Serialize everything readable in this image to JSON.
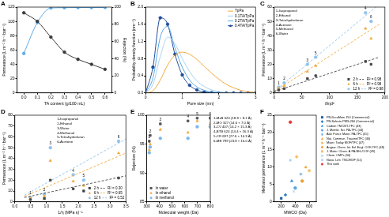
{
  "chart_data": [
    {
      "panel": "A",
      "type": "line",
      "x_label": "TA content (g/100 mL)",
      "y_label": "Permeance (L m⁻² h⁻¹ bar⁻¹)",
      "y2_label": "Rejection (%)",
      "x": [
        0,
        0.1,
        0.2,
        0.3,
        0.4,
        0.5,
        0.6
      ],
      "xlim": [
        -0.05,
        0.65
      ],
      "xticks": [
        {
          "value": 0,
          "label": "0.0"
        },
        0.1,
        0.2,
        0.3,
        0.4,
        0.5,
        0.6
      ],
      "ylim": [
        0,
        120
      ],
      "yticks": [
        0,
        20,
        40,
        60,
        80,
        100,
        120
      ],
      "y2lim": [
        0,
        100
      ],
      "y2ticks": [
        0,
        20,
        40,
        60,
        80,
        100
      ],
      "grid": false,
      "series": [
        {
          "color": "#3a3a3a",
          "marker": "circle",
          "line_style": "solid",
          "values": [
            112,
            100,
            78,
            57,
            47,
            40,
            33
          ]
        },
        {
          "color": "#5aa9e6",
          "marker": "circle",
          "line_style": "solid",
          "axis": "y2",
          "values": [
            46,
            82,
            99,
            99.3,
            99.5,
            99.5,
            99.6
          ]
        }
      ]
    },
    {
      "panel": "B",
      "type": "line",
      "x_label": "Pore size (nm)",
      "y_label": "Probability density function (nm⁻¹)",
      "x": [
        0,
        0.2,
        0.4,
        0.6,
        0.8,
        1,
        1.2,
        1.4,
        1.6,
        1.8,
        2,
        2.2,
        2.4,
        2.6,
        2.8,
        3
      ],
      "xlim": [
        0,
        3
      ],
      "xticks": [
        0,
        1,
        2,
        3
      ],
      "ylim": [
        0,
        2
      ],
      "yticks": [
        {
          "value": 0,
          "label": "0.0"
        },
        0.4,
        0.8,
        1.2,
        1.6,
        {
          "value": 2,
          "label": "2.0"
        }
      ],
      "grid": false,
      "legend": "upper right",
      "series": [
        {
          "name": "TpPa",
          "color": "#f2a93b",
          "marker": "none",
          "line_style": "solid",
          "values": [
            0,
            0.05,
            0.3,
            0.65,
            0.88,
            0.95,
            0.9,
            0.78,
            0.62,
            0.46,
            0.32,
            0.2,
            0.12,
            0.06,
            0.03,
            0.01
          ]
        },
        {
          "name": "0.1TA/TpPa",
          "color": "#a9d0f2",
          "marker": "none",
          "line_style": "solid",
          "values": [
            0,
            0.2,
            0.85,
            1.3,
            1.15,
            0.8,
            0.5,
            0.28,
            0.15,
            0.07,
            0.03,
            0.01,
            0,
            0,
            0,
            0
          ]
        },
        {
          "name": "0.2TA/TpPa",
          "color": "#5aa9e6",
          "marker": "none",
          "line_style": "solid",
          "values": [
            0,
            0.35,
            1.3,
            1.55,
            1.05,
            0.6,
            0.3,
            0.14,
            0.06,
            0.02,
            0.01,
            0,
            0,
            0,
            0,
            0
          ]
        },
        {
          "name": "0.4TA/TpPa",
          "color": "#1f4e9a",
          "marker": "circle",
          "line_style": "solid",
          "values": [
            0,
            0.6,
            1.75,
            1.6,
            0.9,
            0.42,
            0.18,
            0.07,
            0.02,
            0.01,
            0,
            0,
            0,
            0,
            0,
            0
          ]
        }
      ]
    },
    {
      "panel": "C",
      "type": "scatter",
      "x_label": "δ/ηd²",
      "y_label": "Permeance (L m⁻² h⁻¹ bar⁻¹)",
      "annotations": [
        "1-Isopropanol",
        "2-Ethanol",
        "3-Tetrahydrofuran",
        "4-Acetone",
        "5-Methanol",
        "6-Water"
      ],
      "x": [
        8,
        18,
        60,
        165,
        75,
        175
      ],
      "xlim": [
        0,
        200
      ],
      "xticks": [
        0,
        50,
        100,
        150,
        200
      ],
      "ylim": [
        0,
        60
      ],
      "yticks": [
        0,
        10,
        20,
        30,
        40,
        50,
        60
      ],
      "grid": false,
      "legend": "lower right",
      "series": [
        {
          "name": "2 h",
          "color": "#444444",
          "marker": "square",
          "line_style": "none",
          "values": [
            2,
            3,
            10,
            22,
            12,
            20
          ],
          "fit": {
            "x": [
              0,
              190
            ],
            "values": [
              1,
              25
            ]
          },
          "fit_label": "R² = 0.98"
        },
        {
          "name": "6 h",
          "color": "#f2a93b",
          "marker": "triangle",
          "line_style": "none",
          "values": [
            3,
            5,
            15,
            45,
            19,
            38
          ],
          "fit": {
            "x": [
              0,
              190
            ],
            "values": [
              1,
              48
            ]
          },
          "fit_label": "R² = 0.98"
        },
        {
          "name": "12 h",
          "color": "#8ec3ee",
          "marker": "circle",
          "line_style": "none",
          "values": [
            4,
            7,
            20,
            56,
            25,
            50
          ],
          "fit": {
            "x": [
              0,
              190
            ],
            "values": [
              1,
              62
            ]
          },
          "fit_label": "R² = 0.98",
          "point_labels": [
            "1",
            "2",
            "3",
            "4",
            "5",
            "6"
          ]
        }
      ]
    },
    {
      "panel": "D",
      "type": "scatter",
      "x_label": "1/η (MPa s)⁻¹",
      "y_label": "Permeance (L m⁻² h⁻¹ bar⁻¹)",
      "annotations": [
        "1-Isopropanol",
        "2-Ethanol",
        "3-Water",
        "4-Methanol",
        "5-Tetrahydrofuran",
        "6-Acetone"
      ],
      "x": [
        0.49,
        0.93,
        1.12,
        1.84,
        2.17,
        3.27
      ],
      "xlim": [
        0,
        3.5
      ],
      "xticks": [
        {
          "value": 0,
          "label": "0.0"
        },
        0.5,
        {
          "value": 1,
          "label": "1.0"
        },
        1.5,
        {
          "value": 2,
          "label": "2.0"
        },
        2.5,
        {
          "value": 3,
          "label": "3.0"
        },
        3.5
      ],
      "ylim": [
        0,
        80
      ],
      "yticks": [
        0,
        10,
        20,
        30,
        40,
        50,
        60,
        70,
        80
      ],
      "grid": false,
      "legend": "lower right",
      "series": [
        {
          "name": "2 h",
          "color": "#444444",
          "marker": "square",
          "line_style": "none",
          "values": [
            2,
            3,
            20,
            12,
            10,
            22
          ],
          "fit": {
            "x": [
              0.3,
              3.5
            ],
            "values": [
              4,
              24
            ]
          },
          "fit_label": "R² = 0.30"
        },
        {
          "name": "6 h",
          "color": "#f2a93b",
          "marker": "triangle",
          "line_style": "none",
          "values": [
            3,
            5,
            38,
            19,
            15,
            45
          ],
          "fit": {
            "x": [
              0.3,
              3.5
            ],
            "values": [
              5,
              45
            ]
          },
          "fit_label": "R² = 0.65"
        },
        {
          "name": "12 h",
          "color": "#8ec3ee",
          "marker": "circle",
          "line_style": "none",
          "values": [
            4,
            7,
            50,
            25,
            20,
            56
          ],
          "fit": {
            "x": [
              0.3,
              3.5
            ],
            "values": [
              6,
              58
            ]
          },
          "fit_label": "R² = 0.52",
          "point_labels": [
            "1",
            "2",
            "3",
            "4",
            "5",
            "6"
          ]
        }
      ]
    },
    {
      "panel": "E",
      "type": "scatter",
      "x_label": "Molecular weight (Da)",
      "y_label": "Rejection (%)",
      "annotations": [
        "1-MxB 320 (18.8 × 8.1 Å)",
        "2-MO 327 (14.6 × 7.0 Å)",
        "3-CV 407 (14.2 × 15.3 Å)",
        "4-BTB 624 (14.4 × 16.3 Å)",
        "5-CR 697 (27.6 × 10.3 Å)",
        "6-MB 799 (23.8 × 16.0 Å)"
      ],
      "x": [
        320,
        327,
        407,
        624,
        697,
        799
      ],
      "xlim": [
        300,
        800
      ],
      "xticks": [
        300,
        400,
        500,
        600,
        700,
        800
      ],
      "ylim": [
        85,
        100
      ],
      "yticks": [
        85,
        90,
        95,
        100
      ],
      "grid": false,
      "legend": "lower left",
      "series": [
        {
          "name": "In water",
          "color": "#555555",
          "marker": "square",
          "line_style": "none",
          "values": [
            95.5,
            96.5,
            98.5,
            99,
            99.5,
            99.5
          ],
          "point_labels": [
            "1",
            "2",
            "3",
            "4",
            "5",
            "6"
          ]
        },
        {
          "name": "In ethanol",
          "color": "#f2a93b",
          "marker": "triangle",
          "line_style": "none",
          "values": [
            94,
            95,
            97.5,
            97,
            99,
            98.5
          ]
        },
        {
          "name": "In methanol",
          "color": "#7db8e8",
          "marker": "circle",
          "line_style": "none",
          "values": [
            93.5,
            94.5,
            96,
            96,
            98,
            98
          ]
        }
      ]
    },
    {
      "panel": "F",
      "type": "scatter",
      "x_label": "MWCO (Da)",
      "y_label": "Methanol permeance (L m⁻² h⁻¹ bar⁻¹)",
      "xlim": [
        100,
        700
      ],
      "xticks": [
        200,
        400,
        600
      ],
      "ylim": [
        0,
        25
      ],
      "yticks": [
        0,
        5,
        10,
        15,
        20,
        25
      ],
      "grid": false,
      "legend": "right",
      "series": [
        {
          "name": "PN-DuraMem 150 (Commercial)",
          "color": "#1f5fa8",
          "marker": "square",
          "line_style": "none",
          "x": [
            200
          ],
          "values": [
            1
          ]
        },
        {
          "name": "PN-Selecto PMS-260 (Commercial)",
          "color": "#2f7fc8",
          "marker": "diamond",
          "line_style": "none",
          "x": [
            260
          ],
          "values": [
            2
          ]
        },
        {
          "name": "Carbon TN/CNT-TFC (43)",
          "color": "#3a8fd8",
          "marker": "triangle",
          "line_style": "none",
          "x": [
            350
          ],
          "values": [
            6
          ]
        },
        {
          "name": "J. Membr. Sci. PA-TFC (44)",
          "color": "#5aa4e0",
          "marker": "circle",
          "line_style": "none",
          "x": [
            400
          ],
          "values": [
            4
          ]
        },
        {
          "name": "Adv. Funct. Mater. PA-TFC (45)",
          "color": "#6aaee6",
          "marker": "star",
          "line_style": "none",
          "x": [
            480
          ],
          "values": [
            8
          ]
        },
        {
          "name": "Nat. Commun. Triazine/TFC (46)",
          "color": "#f2a93b",
          "marker": "triangle",
          "line_style": "none",
          "x": [
            550
          ],
          "values": [
            10
          ]
        },
        {
          "name": "Mater. Today MOF/TFC (47)",
          "color": "#f5b95a",
          "marker": "diamond",
          "line_style": "none",
          "x": [
            420
          ],
          "values": [
            13
          ]
        },
        {
          "name": "Angew. Chem. Int. Ed. Engl. COF-TFC (48)",
          "color": "#e8a030",
          "marker": "circle",
          "line_style": "none",
          "x": [
            500
          ],
          "values": [
            6
          ]
        },
        {
          "name": "J. Mater. Chem. A PA-NH₂/COF (49)",
          "color": "#f0c070",
          "marker": "square",
          "line_style": "none",
          "x": [
            600
          ],
          "values": [
            9
          ]
        },
        {
          "name": "Chem. CMPs (50)",
          "color": "#7fbfe8",
          "marker": "cross",
          "line_style": "none",
          "x": [
            380
          ],
          "values": [
            3
          ]
        },
        {
          "name": "Nano. Lett. TNC/MOF (51)",
          "color": "#9ccbee",
          "marker": "star",
          "line_style": "none",
          "x": [
            330
          ],
          "values": [
            12
          ]
        },
        {
          "name": "This work",
          "color": "#e53935",
          "marker": "circle",
          "line_style": "none",
          "x": [
            330
          ],
          "values": [
            23
          ]
        }
      ]
    }
  ]
}
